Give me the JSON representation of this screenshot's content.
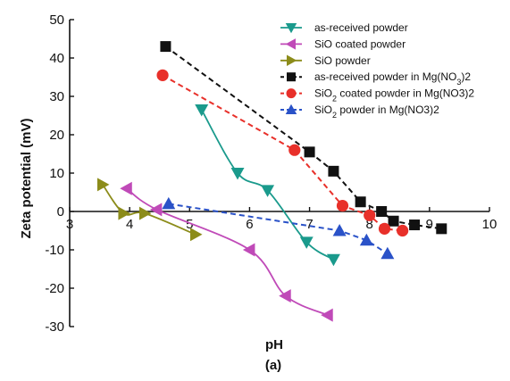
{
  "chart_data": {
    "type": "scatter",
    "xlabel": "pH",
    "ylabel": "Zeta potential (mV)",
    "caption": "(a)",
    "xlim": [
      3,
      10
    ],
    "ylim": [
      -30,
      50
    ],
    "xticks": [
      3,
      4,
      5,
      6,
      7,
      8,
      9,
      10
    ],
    "yticks": [
      -30,
      -20,
      -10,
      0,
      10,
      20,
      30,
      40,
      50
    ],
    "grid": false,
    "legend_position": "top-right",
    "series": [
      {
        "name": "as-received powder",
        "name_sub": "",
        "name_tail": "",
        "marker": "triangle-down",
        "line": "solid-smooth",
        "color": "#1a9a8c",
        "x": [
          5.2,
          5.8,
          6.3,
          6.95,
          7.4
        ],
        "y": [
          26.5,
          10,
          5.5,
          -8,
          -12.5
        ]
      },
      {
        "name": "SiO coated powder",
        "name_sub": "",
        "name_tail": "",
        "marker": "triangle-left",
        "line": "solid-smooth",
        "color": "#c04ab8",
        "x": [
          3.95,
          4.45,
          6.0,
          6.6,
          7.3
        ],
        "y": [
          6,
          0.5,
          -10,
          -22,
          -27
        ]
      },
      {
        "name": "SiO powder",
        "name_sub": "",
        "name_tail": "",
        "marker": "triangle-right",
        "line": "solid-smooth",
        "color": "#8c8c1a",
        "x": [
          3.55,
          3.9,
          4.25,
          5.1
        ],
        "y": [
          7,
          -0.5,
          -0.5,
          -6
        ]
      },
      {
        "name": "as-received powder in Mg(NO",
        "name_sub": "3",
        "name_tail": ")2",
        "marker": "square",
        "line": "dashed",
        "color": "#111111",
        "x": [
          4.6,
          7.0,
          7.4,
          7.85,
          8.2,
          8.4,
          8.75,
          9.2
        ],
        "y": [
          43,
          15.5,
          10.5,
          2.5,
          0,
          -2.5,
          -3.5,
          -4.5
        ]
      },
      {
        "name": "SiO",
        "name_sub": "2",
        "name_tail": " coated powder in Mg(NO3)2",
        "marker": "circle",
        "line": "dashed",
        "color": "#e8302a",
        "x": [
          4.55,
          6.75,
          7.55,
          8.0,
          8.25,
          8.55
        ],
        "y": [
          35.5,
          16,
          1.5,
          -1,
          -4.5,
          -5
        ]
      },
      {
        "name": "SiO",
        "name_sub": "2",
        "name_tail": " powder in Mg(NO3)2",
        "marker": "triangle-up",
        "line": "dashed",
        "color": "#2a52c8",
        "x": [
          4.65,
          7.5,
          7.95,
          8.3
        ],
        "y": [
          2,
          -5,
          -7.5,
          -11
        ]
      }
    ]
  }
}
